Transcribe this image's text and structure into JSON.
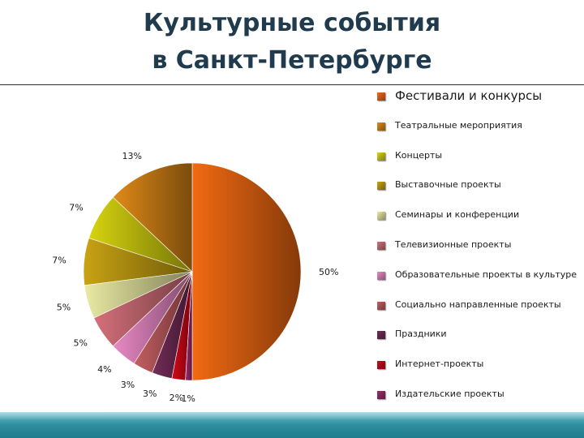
{
  "title": {
    "line1": "Культурные события",
    "line2": "в Санкт-Петербурге"
  },
  "chart_data": {
    "type": "pie",
    "title": "Культурные события в Санкт-Петербурге",
    "slices": [
      {
        "label": "Фестивали и конкурсы",
        "value": 50,
        "value_label": "50%",
        "color": "#f26a12"
      },
      {
        "label": "Театральные мероприятия",
        "value": 13,
        "value_label": "13%",
        "color": "#e08a17"
      },
      {
        "label": "Концерты",
        "value": 7,
        "value_label": "7%",
        "color": "#d7d40f"
      },
      {
        "label": "Выставочные проекты",
        "value": 7,
        "value_label": "7%",
        "color": "#c9a313"
      },
      {
        "label": "Семинары и конференции",
        "value": 5,
        "value_label": "5%",
        "color": "#eaeaa4"
      },
      {
        "label": "Телевизионные проекты",
        "value": 5,
        "value_label": "5%",
        "color": "#d5707a"
      },
      {
        "label": "Образовательные проекты в культуре",
        "value": 4,
        "value_label": "4%",
        "color": "#e889c6"
      },
      {
        "label": "Социально направленные проекты",
        "value": 3,
        "value_label": "3%",
        "color": "#c45f62"
      },
      {
        "label": "Праздники",
        "value": 3,
        "value_label": "3%",
        "color": "#732c58"
      },
      {
        "label": "Интернет-проекты",
        "value": 2,
        "value_label": "2%",
        "color": "#d40818"
      },
      {
        "label": "Издательские проекты",
        "value": 1,
        "value_label": "1%",
        "color": "#a02a6e"
      }
    ],
    "legend_position": "right"
  }
}
